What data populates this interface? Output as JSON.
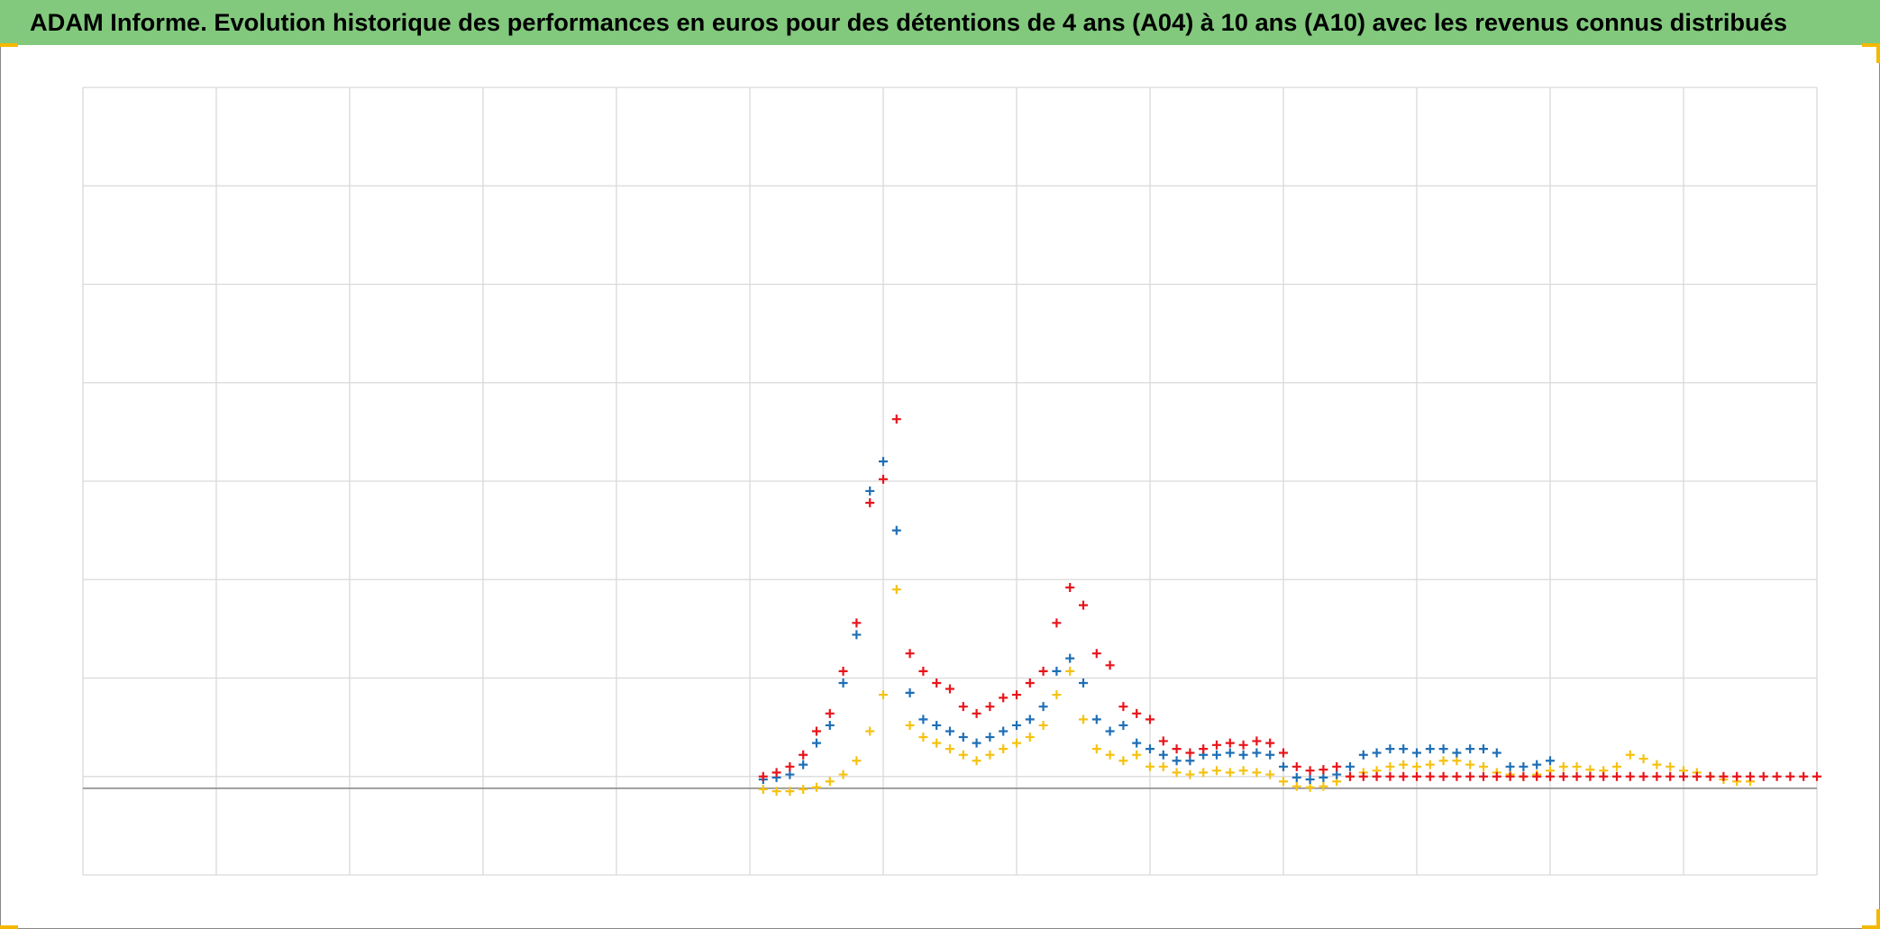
{
  "chart_data": {
    "type": "scatter",
    "title": "ADAM Informe. Evolution historique des performances en euros pour des détentions de 4 ans (A04) à 10 ans (A10) avec les revenus connus distribués",
    "title_background": "#82c97e",
    "marker": "+",
    "xlim": [
      0,
      13
    ],
    "xticks": [
      0,
      1,
      2,
      3,
      4,
      5,
      6,
      7,
      8,
      9,
      10,
      11,
      12,
      13
    ],
    "ylim": [
      0,
      8
    ],
    "yticks": [
      0,
      1,
      2,
      3,
      4,
      5,
      6,
      7,
      8
    ],
    "grid": true,
    "baseline": 0.88,
    "x": [
      5.1,
      5.2,
      5.3,
      5.4,
      5.5,
      5.6,
      5.7,
      5.8,
      5.9,
      6.0,
      6.1,
      6.2,
      6.3,
      6.4,
      6.5,
      6.6,
      6.7,
      6.8,
      6.9,
      7.0,
      7.1,
      7.2,
      7.3,
      7.4,
      7.5,
      7.6,
      7.7,
      7.8,
      7.9,
      8.0,
      8.1,
      8.2,
      8.3,
      8.4,
      8.5,
      8.6,
      8.7,
      8.8,
      8.9,
      9.0,
      9.1,
      9.2,
      9.3,
      9.4,
      9.5,
      9.6,
      9.7,
      9.8,
      9.9,
      10.0,
      10.1,
      10.2,
      10.3,
      10.4,
      10.5,
      10.6,
      10.7,
      10.8,
      10.9,
      11.0,
      11.1,
      11.2,
      11.3,
      11.4,
      11.5,
      11.6,
      11.7,
      11.8,
      11.9,
      12.0,
      12.1,
      12.2,
      12.3,
      12.4,
      12.5,
      12.6,
      12.7,
      12.8,
      12.9,
      13.0
    ],
    "series": [
      {
        "color": "#f5c211",
        "values": [
          0.87,
          0.85,
          0.85,
          0.87,
          0.89,
          0.95,
          1.02,
          1.16,
          1.46,
          1.83,
          2.9,
          1.52,
          1.4,
          1.34,
          1.28,
          1.22,
          1.16,
          1.22,
          1.28,
          1.34,
          1.4,
          1.52,
          1.83,
          2.07,
          1.58,
          1.28,
          1.22,
          1.16,
          1.22,
          1.1,
          1.1,
          1.04,
          1.02,
          1.04,
          1.06,
          1.04,
          1.06,
          1.04,
          1.02,
          0.95,
          0.9,
          0.89,
          0.9,
          0.95,
          1.0,
          1.04,
          1.06,
          1.1,
          1.12,
          1.1,
          1.12,
          1.16,
          1.16,
          1.12,
          1.1,
          1.04,
          1.02,
          1.0,
          1.02,
          1.06,
          1.1,
          1.1,
          1.07,
          1.06,
          1.1,
          1.22,
          1.18,
          1.12,
          1.1,
          1.06,
          1.04,
          1.0,
          0.97,
          0.95,
          0.95,
          null,
          null,
          null,
          null,
          null
        ]
      },
      {
        "color": "#1f6fb5",
        "values": [
          0.97,
          0.99,
          1.02,
          1.12,
          1.34,
          1.52,
          1.95,
          2.44,
          3.9,
          4.2,
          3.5,
          1.85,
          1.58,
          1.52,
          1.46,
          1.4,
          1.34,
          1.4,
          1.46,
          1.52,
          1.58,
          1.71,
          2.07,
          2.2,
          1.95,
          1.58,
          1.46,
          1.52,
          1.34,
          1.28,
          1.22,
          1.16,
          1.16,
          1.22,
          1.22,
          1.24,
          1.22,
          1.24,
          1.22,
          1.1,
          0.99,
          0.97,
          0.99,
          1.02,
          1.1,
          1.22,
          1.24,
          1.28,
          1.28,
          1.24,
          1.28,
          1.28,
          1.24,
          1.28,
          1.28,
          1.24,
          1.1,
          1.1,
          1.12,
          1.16,
          null,
          null,
          null,
          null,
          null,
          null,
          null,
          null,
          null,
          null,
          null,
          null,
          null,
          null,
          null,
          null,
          null,
          null,
          null,
          null
        ]
      },
      {
        "color": "#e8141b",
        "values": [
          1.0,
          1.04,
          1.1,
          1.22,
          1.46,
          1.64,
          2.07,
          2.56,
          3.78,
          4.02,
          4.63,
          2.25,
          2.07,
          1.95,
          1.89,
          1.71,
          1.64,
          1.71,
          1.8,
          1.83,
          1.95,
          2.07,
          2.56,
          2.92,
          2.74,
          2.25,
          2.13,
          1.71,
          1.64,
          1.58,
          1.36,
          1.28,
          1.24,
          1.28,
          1.32,
          1.34,
          1.32,
          1.36,
          1.34,
          1.24,
          1.1,
          1.06,
          1.07,
          1.1,
          1.0,
          1.0,
          1.0,
          1.0,
          1.0,
          1.0,
          1.0,
          1.0,
          1.0,
          1.0,
          1.0,
          1.0,
          1.0,
          1.0,
          1.0,
          1.0,
          1.0,
          1.0,
          1.0,
          1.0,
          1.0,
          1.0,
          1.0,
          1.0,
          1.0,
          1.0,
          1.0,
          1.0,
          1.0,
          1.0,
          1.0,
          1.0,
          1.0,
          1.0,
          1.0,
          1.0
        ]
      }
    ]
  }
}
